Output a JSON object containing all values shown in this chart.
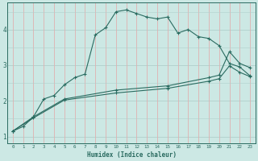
{
  "xlabel": "Humidex (Indice chaleur)",
  "bg_color": "#cce8e4",
  "line_color": "#2a6b60",
  "xlim": [
    -0.5,
    23.5
  ],
  "ylim": [
    0.8,
    4.75
  ],
  "xticks": [
    0,
    1,
    2,
    3,
    4,
    5,
    6,
    7,
    8,
    9,
    10,
    11,
    12,
    13,
    14,
    15,
    16,
    17,
    18,
    19,
    20,
    21,
    22,
    23
  ],
  "yticks": [
    1,
    2,
    3,
    4
  ],
  "line1_x": [
    0,
    1,
    2,
    3,
    4,
    5,
    6,
    7,
    8,
    9,
    10,
    11,
    12,
    13,
    14,
    15,
    16,
    17,
    18,
    19,
    20,
    21,
    22,
    23
  ],
  "line1_y": [
    1.15,
    1.28,
    1.55,
    2.05,
    2.15,
    2.45,
    2.65,
    2.75,
    3.85,
    4.05,
    4.5,
    4.55,
    4.45,
    4.35,
    4.3,
    4.35,
    3.9,
    4.0,
    3.8,
    3.75,
    3.55,
    3.05,
    2.95,
    2.7
  ],
  "line2_x": [
    0,
    2,
    5,
    10,
    15,
    19,
    20,
    21,
    22,
    23
  ],
  "line2_y": [
    1.15,
    1.55,
    2.05,
    2.3,
    2.42,
    2.65,
    2.72,
    3.38,
    3.05,
    2.93
  ],
  "line3_x": [
    0,
    2,
    5,
    10,
    15,
    19,
    20,
    21,
    22,
    23
  ],
  "line3_y": [
    1.15,
    1.52,
    2.02,
    2.22,
    2.35,
    2.55,
    2.62,
    2.98,
    2.8,
    2.68
  ],
  "hgrid_color": "#b0d0cc",
  "vgrid_color": "#e0b0b0"
}
